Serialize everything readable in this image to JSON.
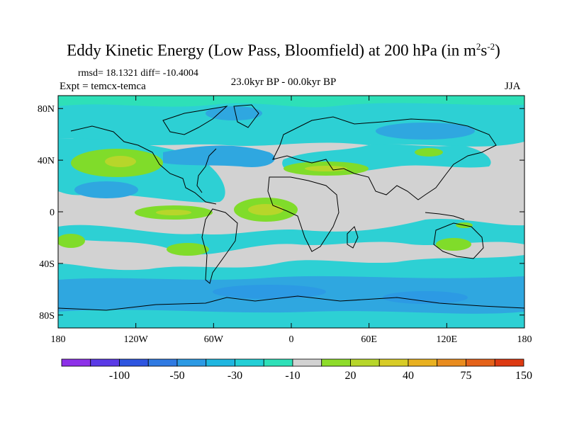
{
  "title": {
    "main": "Eddy Kinetic Energy (Low Pass, Bloomfield) at 200 hPa (in m",
    "sup1": "2",
    "mid": "s",
    "sup2": "-2",
    "end": ")"
  },
  "stats": "rmsd= 18.1321 diff= -10.4004",
  "expt": "Expt = temcx-temca",
  "period": "23.0kyr BP - 00.0kyr BP",
  "season": "JJA",
  "map": {
    "lon_range": [
      -180,
      180
    ],
    "lat_range": [
      -90,
      90
    ],
    "lat_ticks": [
      {
        "value": 80,
        "label": "80N"
      },
      {
        "value": 40,
        "label": "40N"
      },
      {
        "value": 0,
        "label": "0"
      },
      {
        "value": -40,
        "label": "40S"
      },
      {
        "value": -80,
        "label": "80S"
      }
    ],
    "lon_ticks": [
      {
        "value": -180,
        "label": "180"
      },
      {
        "value": -120,
        "label": "120W"
      },
      {
        "value": -60,
        "label": "60W"
      },
      {
        "value": 0,
        "label": "0"
      },
      {
        "value": 60,
        "label": "60E"
      },
      {
        "value": 120,
        "label": "120E"
      },
      {
        "value": 180,
        "label": "180"
      }
    ]
  },
  "colorbar": {
    "colors": [
      "#8d31e8",
      "#5a3ae6",
      "#2e55e0",
      "#2f7ae2",
      "#2c9ae4",
      "#1fb6e0",
      "#23cfd6",
      "#2ee0b8",
      "#d2d2d2",
      "#8edc2a",
      "#b7d62a",
      "#d8cc26",
      "#e9b120",
      "#e98c1e",
      "#e4621a",
      "#dd3a12"
    ],
    "labels": [
      {
        "after_index": 1,
        "text": "-100"
      },
      {
        "after_index": 3,
        "text": "-50"
      },
      {
        "after_index": 5,
        "text": "-30"
      },
      {
        "after_index": 7,
        "text": "-10"
      },
      {
        "after_index": 9,
        "text": "20"
      },
      {
        "after_index": 11,
        "text": "40"
      },
      {
        "after_index": 13,
        "text": "75"
      },
      {
        "after_index": 15,
        "text": "150"
      }
    ]
  },
  "colors": {
    "gray": "#d2d2d2",
    "blue": "#2fa7e0",
    "cyan": "#2dd0d4",
    "teal": "#2ee0b8",
    "green": "#80dc2a",
    "yellow_green": "#b7d62a"
  }
}
